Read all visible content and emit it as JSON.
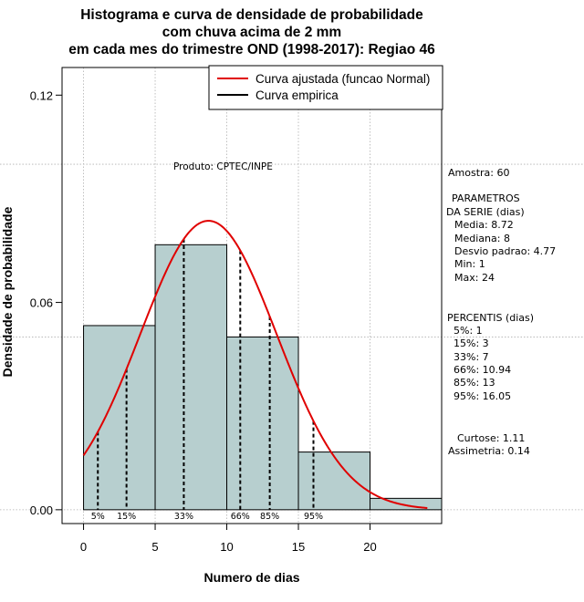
{
  "colors": {
    "bar_fill": "#b7cfcf",
    "curve": "#e00000",
    "empirical": "#000000",
    "grid": "#b0b0b0"
  },
  "title_lines": [
    "Histograma e curva de densidade de probabilidade",
    "com chuva acima de 2 mm",
    "em cada mes do trimestre OND (1998-2017): Regiao 46"
  ],
  "legend": {
    "fitted": "Curva ajustada (funcao Normal)",
    "empirical": "Curva empirica"
  },
  "producer": "Produto: CPTEC/INPE",
  "info": {
    "sample": "Amostra: 60",
    "params_title_1": "PARAMETROS",
    "params_title_2": "DA SERIE (dias)",
    "mean": "Media: 8.72",
    "median": "Mediana: 8",
    "sd": "Desvio padrao: 4.77",
    "min": "Min: 1",
    "max": "Max: 24",
    "pct_title": "PERCENTIS (dias)",
    "p5": "5%: 1",
    "p15": "15%: 3",
    "p33": "33%: 7",
    "p66": "66%: 10.94",
    "p85": "85%: 13",
    "p95": "95%: 16.05",
    "kurtosis": "Curtose: 1.11",
    "skewness": "Assimetria: 0.14"
  },
  "chart_data": {
    "type": "bar",
    "title": "Histograma e curva de densidade de probabilidade com chuva acima de 2 mm em cada mes do trimestre OND (1998-2017): Regiao 46",
    "xlabel": "Numero de dias",
    "ylabel": "Densidade de probabilidade",
    "xlim": [
      -1.5,
      25
    ],
    "ylim": [
      -0.004,
      0.128
    ],
    "x_ticks": [
      0,
      5,
      10,
      15,
      20
    ],
    "x_tick_labels": [
      "0",
      "5",
      "10",
      "15",
      "20"
    ],
    "y_ticks": [
      0.0,
      0.06,
      0.12
    ],
    "y_tick_labels": [
      "0.00",
      "0.06",
      "0.12"
    ],
    "grid_y": [
      0.0,
      0.05,
      0.1
    ],
    "bins": [
      {
        "start": 0,
        "end": 5,
        "density": 0.0533
      },
      {
        "start": 5,
        "end": 10,
        "density": 0.0767
      },
      {
        "start": 10,
        "end": 15,
        "density": 0.05
      },
      {
        "start": 15,
        "end": 20,
        "density": 0.0167
      },
      {
        "start": 20,
        "end": 25,
        "density": 0.0033
      }
    ],
    "normal_fit": {
      "mean": 8.72,
      "sd": 4.77,
      "x_range": [
        0,
        24
      ]
    },
    "percentiles": [
      {
        "label": "5%",
        "value": 1
      },
      {
        "label": "15%",
        "value": 3
      },
      {
        "label": "33%",
        "value": 7
      },
      {
        "label": "66%",
        "value": 10.94
      },
      {
        "label": "85%",
        "value": 13
      },
      {
        "label": "95%",
        "value": 16.05
      }
    ]
  }
}
